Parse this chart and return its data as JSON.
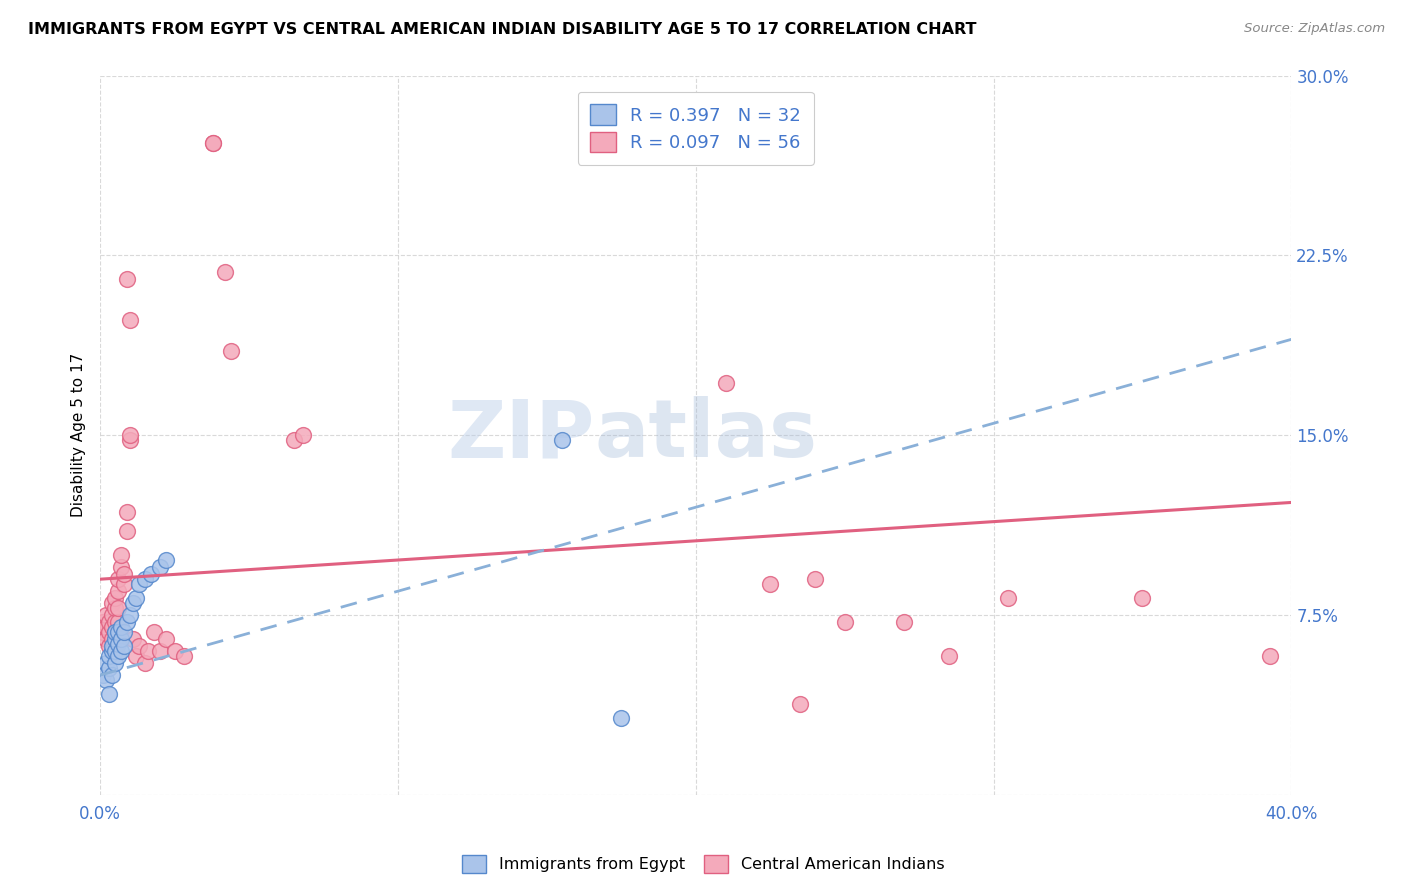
{
  "title": "IMMIGRANTS FROM EGYPT VS CENTRAL AMERICAN INDIAN DISABILITY AGE 5 TO 17 CORRELATION CHART",
  "source": "Source: ZipAtlas.com",
  "ylabel": "Disability Age 5 to 17",
  "xlim": [
    0.0,
    0.4
  ],
  "ylim": [
    0.0,
    0.3
  ],
  "xticks": [
    0.0,
    0.1,
    0.2,
    0.3,
    0.4
  ],
  "xtick_labels": [
    "0.0%",
    "",
    "",
    "",
    "40.0%"
  ],
  "yticks": [
    0.0,
    0.075,
    0.15,
    0.225,
    0.3
  ],
  "ytick_labels": [
    "",
    "7.5%",
    "15.0%",
    "22.5%",
    "30.0%"
  ],
  "watermark_zip": "ZIP",
  "watermark_atlas": "atlas",
  "blue_R": "0.397",
  "blue_N": "32",
  "pink_R": "0.097",
  "pink_N": "56",
  "legend_label_blue": "Immigrants from Egypt",
  "legend_label_pink": "Central American Indians",
  "blue_color": "#aac4ea",
  "pink_color": "#f4aabb",
  "blue_edge_color": "#5588cc",
  "pink_edge_color": "#e06080",
  "blue_line_color": "#8ab0d8",
  "pink_line_color": "#e06080",
  "tick_color": "#4477cc",
  "blue_scatter": [
    [
      0.001,
      0.05
    ],
    [
      0.002,
      0.048
    ],
    [
      0.002,
      0.055
    ],
    [
      0.003,
      0.042
    ],
    [
      0.003,
      0.053
    ],
    [
      0.003,
      0.058
    ],
    [
      0.004,
      0.05
    ],
    [
      0.004,
      0.06
    ],
    [
      0.004,
      0.062
    ],
    [
      0.005,
      0.055
    ],
    [
      0.005,
      0.06
    ],
    [
      0.005,
      0.065
    ],
    [
      0.005,
      0.068
    ],
    [
      0.006,
      0.058
    ],
    [
      0.006,
      0.063
    ],
    [
      0.006,
      0.068
    ],
    [
      0.007,
      0.06
    ],
    [
      0.007,
      0.065
    ],
    [
      0.007,
      0.07
    ],
    [
      0.008,
      0.062
    ],
    [
      0.008,
      0.068
    ],
    [
      0.009,
      0.072
    ],
    [
      0.01,
      0.075
    ],
    [
      0.011,
      0.08
    ],
    [
      0.012,
      0.082
    ],
    [
      0.013,
      0.088
    ],
    [
      0.015,
      0.09
    ],
    [
      0.017,
      0.092
    ],
    [
      0.02,
      0.095
    ],
    [
      0.022,
      0.098
    ],
    [
      0.155,
      0.148
    ],
    [
      0.175,
      0.032
    ]
  ],
  "pink_scatter": [
    [
      0.001,
      0.068
    ],
    [
      0.001,
      0.072
    ],
    [
      0.002,
      0.065
    ],
    [
      0.002,
      0.07
    ],
    [
      0.002,
      0.075
    ],
    [
      0.003,
      0.062
    ],
    [
      0.003,
      0.068
    ],
    [
      0.003,
      0.072
    ],
    [
      0.004,
      0.065
    ],
    [
      0.004,
      0.07
    ],
    [
      0.004,
      0.075
    ],
    [
      0.004,
      0.08
    ],
    [
      0.005,
      0.068
    ],
    [
      0.005,
      0.072
    ],
    [
      0.005,
      0.078
    ],
    [
      0.005,
      0.082
    ],
    [
      0.006,
      0.072
    ],
    [
      0.006,
      0.078
    ],
    [
      0.006,
      0.085
    ],
    [
      0.006,
      0.09
    ],
    [
      0.007,
      0.095
    ],
    [
      0.007,
      0.1
    ],
    [
      0.008,
      0.088
    ],
    [
      0.008,
      0.092
    ],
    [
      0.009,
      0.11
    ],
    [
      0.009,
      0.118
    ],
    [
      0.01,
      0.148
    ],
    [
      0.01,
      0.15
    ],
    [
      0.011,
      0.065
    ],
    [
      0.012,
      0.058
    ],
    [
      0.013,
      0.062
    ],
    [
      0.015,
      0.055
    ],
    [
      0.016,
      0.06
    ],
    [
      0.018,
      0.068
    ],
    [
      0.02,
      0.06
    ],
    [
      0.022,
      0.065
    ],
    [
      0.025,
      0.06
    ],
    [
      0.028,
      0.058
    ],
    [
      0.038,
      0.272
    ],
    [
      0.042,
      0.218
    ],
    [
      0.044,
      0.185
    ],
    [
      0.065,
      0.148
    ],
    [
      0.068,
      0.15
    ],
    [
      0.21,
      0.172
    ],
    [
      0.225,
      0.088
    ],
    [
      0.24,
      0.09
    ],
    [
      0.25,
      0.072
    ],
    [
      0.27,
      0.072
    ],
    [
      0.285,
      0.058
    ],
    [
      0.305,
      0.082
    ],
    [
      0.35,
      0.082
    ],
    [
      0.393,
      0.058
    ],
    [
      0.235,
      0.038
    ],
    [
      0.01,
      0.198
    ],
    [
      0.009,
      0.215
    ],
    [
      0.038,
      0.272
    ]
  ],
  "blue_trendline": [
    [
      0.0,
      0.05
    ],
    [
      0.4,
      0.19
    ]
  ],
  "pink_trendline": [
    [
      0.0,
      0.09
    ],
    [
      0.4,
      0.122
    ]
  ]
}
